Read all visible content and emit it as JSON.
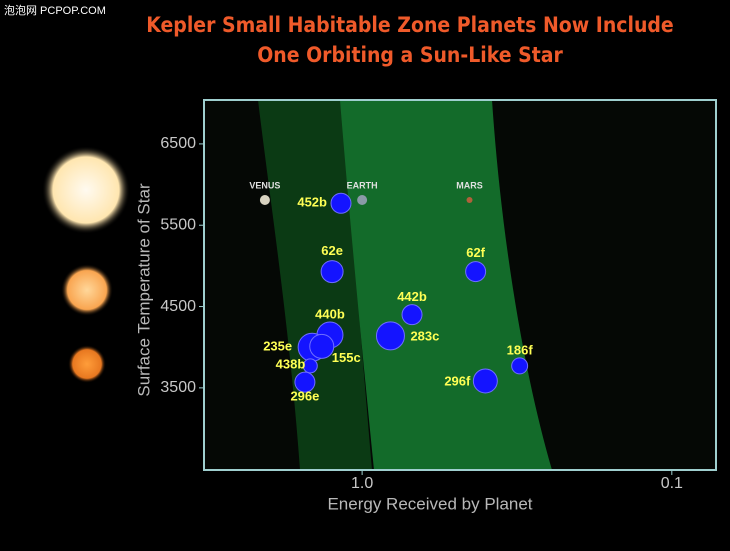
{
  "watermark": "泡泡网 PCPOP.COM",
  "chart_data": {
    "type": "scatter",
    "title": [
      "Kepler Small Habitable Zone Planets Now Include",
      "One Orbiting a Sun-Like Star"
    ],
    "xlabel": "Energy Received by Planet",
    "ylabel": "Surface Temperature of Star",
    "xscale": "log",
    "xlim": [
      3.24,
      0.072
    ],
    "ylim": [
      2490,
      7040
    ],
    "xticks": [
      {
        "value": 1,
        "label": "1.0"
      },
      0.1
    ],
    "yticks": [
      3500,
      4500,
      5500,
      6500
    ],
    "color": "#1414ff",
    "labels": [
      "452b",
      "62e",
      "62f",
      "442b",
      "440b",
      "283c",
      "235e",
      "155c",
      "438b",
      "296e",
      "296f",
      "186f"
    ],
    "x": [
      1.17,
      1.25,
      0.43,
      0.69,
      1.27,
      0.81,
      1.45,
      1.35,
      1.47,
      1.53,
      0.4,
      0.31
    ],
    "y": [
      5770,
      4930,
      4930,
      4400,
      4150,
      4140,
      4000,
      4010,
      3770,
      3570,
      3585,
      3770
    ],
    "sizes": [
      10,
      11,
      10,
      10,
      13,
      14,
      14,
      12,
      7,
      10,
      12,
      8
    ],
    "reference_labels": [
      "VENUS",
      "EARTH",
      "MARS"
    ],
    "reference_x": [
      2.06,
      1.0,
      0.45
    ],
    "reference_y": [
      5810,
      5810,
      5810
    ]
  }
}
